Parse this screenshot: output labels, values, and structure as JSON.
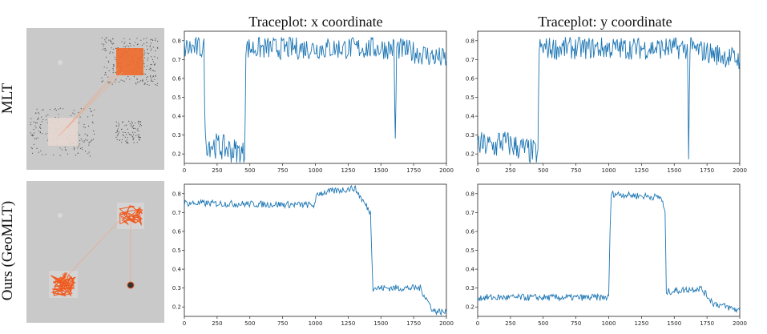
{
  "columns": {
    "x_title": "Traceplot: x coordinate",
    "y_title": "Traceplot: y coordinate"
  },
  "rows": {
    "top_label": "MLT",
    "bottom_label": "Ours (GeoMLT)"
  },
  "colors": {
    "line": "#1f77b4",
    "thumb_bg": "#c9c9c9",
    "orange": "#f05a1e"
  },
  "chart_data": [
    {
      "type": "line",
      "row": "MLT",
      "title": "Traceplot: x coordinate",
      "xlim": [
        0,
        2000
      ],
      "ylim": [
        0.15,
        0.85
      ],
      "xticks": [
        0,
        250,
        500,
        750,
        1000,
        1250,
        1500,
        1750,
        2000
      ],
      "yticks": [
        0.2,
        0.3,
        0.4,
        0.5,
        0.6,
        0.7,
        0.8
      ],
      "series": [
        {
          "x": [
            0,
            150,
            160,
            460,
            470,
            1600,
            1610,
            1620,
            2000
          ],
          "y": [
            0.76,
            0.76,
            0.26,
            0.2,
            0.76,
            0.76,
            0.25,
            0.76,
            0.7
          ]
        }
      ]
    },
    {
      "type": "line",
      "row": "MLT",
      "title": "Traceplot: y coordinate",
      "xlim": [
        0,
        2000
      ],
      "ylim": [
        0.15,
        0.85
      ],
      "xticks": [
        0,
        250,
        500,
        750,
        1000,
        1250,
        1500,
        1750,
        2000
      ],
      "yticks": [
        0.2,
        0.3,
        0.4,
        0.5,
        0.6,
        0.7,
        0.8
      ],
      "series": [
        {
          "x": [
            0,
            150,
            160,
            460,
            470,
            1600,
            1610,
            1620,
            2000
          ],
          "y": [
            0.25,
            0.24,
            0.27,
            0.2,
            0.76,
            0.76,
            0.23,
            0.76,
            0.7
          ]
        }
      ]
    },
    {
      "type": "line",
      "row": "Ours (GeoMLT)",
      "title": "Traceplot: x coordinate",
      "xlim": [
        0,
        2000
      ],
      "ylim": [
        0.15,
        0.85
      ],
      "xticks": [
        0,
        250,
        500,
        750,
        1000,
        1250,
        1500,
        1750,
        2000
      ],
      "yticks": [
        0.2,
        0.3,
        0.4,
        0.5,
        0.6,
        0.7,
        0.8
      ],
      "series": [
        {
          "x": [
            0,
            1000,
            1010,
            1300,
            1420,
            1430,
            1440,
            1800,
            1900,
            2000
          ],
          "y": [
            0.75,
            0.74,
            0.8,
            0.83,
            0.7,
            0.5,
            0.3,
            0.3,
            0.18,
            0.17
          ]
        }
      ]
    },
    {
      "type": "line",
      "row": "Ours (GeoMLT)",
      "title": "Traceplot: y coordinate",
      "xlim": [
        0,
        2000
      ],
      "ylim": [
        0.15,
        0.85
      ],
      "xticks": [
        0,
        250,
        500,
        750,
        1000,
        1250,
        1500,
        1750,
        2000
      ],
      "yticks": [
        0.2,
        0.3,
        0.4,
        0.5,
        0.6,
        0.7,
        0.8
      ],
      "series": [
        {
          "x": [
            0,
            1000,
            1010,
            1020,
            1400,
            1430,
            1440,
            1700,
            1800,
            2000
          ],
          "y": [
            0.25,
            0.25,
            0.6,
            0.8,
            0.78,
            0.7,
            0.28,
            0.3,
            0.22,
            0.18
          ]
        }
      ]
    }
  ]
}
